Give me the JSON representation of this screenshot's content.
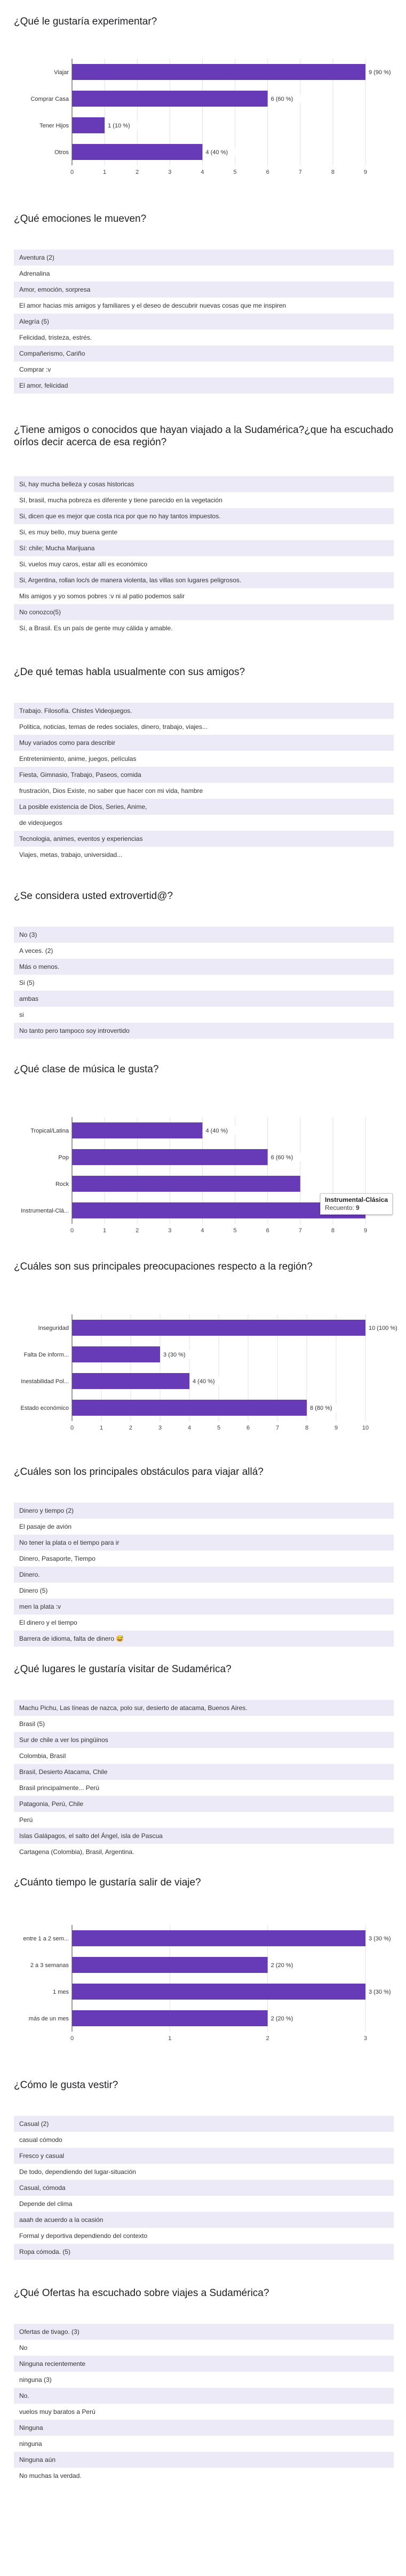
{
  "colors": {
    "bar": "#673ab7",
    "row_alt": "#eceaf6",
    "grid": "#e0e0e0",
    "text": "#212121"
  },
  "q1": {
    "title": "¿Qué le gustaría experimentar?",
    "chart_data": {
      "type": "bar",
      "orientation": "horizontal",
      "categories": [
        "Viajar",
        "Comprar Casa",
        "Tener Hijos",
        "Otros"
      ],
      "values": [
        9,
        6,
        1,
        4
      ],
      "value_labels": [
        "9 (90 %)",
        "6 (60 %)",
        "1 (10 %)",
        "4 (40 %)"
      ],
      "xlim": [
        0,
        9
      ],
      "xticks": [
        "0",
        "1",
        "2",
        "3",
        "4",
        "5",
        "6",
        "7",
        "8",
        "9"
      ]
    }
  },
  "q2": {
    "title": "¿Qué emociones le mueven?",
    "items": [
      "Aventura (2)",
      "Adrenalina",
      "Amor, emoción, sorpresa",
      "El amor hacias mis amigos y familiares y el deseo de descubrir nuevas cosas que me inspiren",
      "Alegría (5)",
      "Felicidad, tristeza, estrés.",
      "Compañerismo, Cariño",
      "Comprar :v",
      "El amor, felicidad"
    ]
  },
  "q3": {
    "title": "¿Tiene amigos o conocidos que hayan viajado a la Sudamérica?¿que ha escuchado oírlos decir acerca de esa región?",
    "items": [
      "Si, hay mucha belleza y cosas historicas",
      "SI, brasil, mucha pobreza es diferente y tiene parecido en la vegetación",
      "Si, dicen que es mejor que costa rica por que no hay tantos impuestos.",
      "Si, es muy bello, muy buena gente",
      "Sí: chile; Mucha Marijuana",
      "Si, vuelos muy caros, estar allí es económico",
      "Si, Argentina, rollan loc/s de manera violenta, las villas son lugares peligrosos.",
      "Mis amigos y yo somos pobres :v ni al patio podemos salir",
      "No conozco(5)",
      "Sí, a Brasil. Es un país de gente muy cálida y amable."
    ]
  },
  "q4": {
    "title": "¿De qué temas habla usualmente con sus amigos?",
    "items": [
      "Trabajo. Filosofía. Chistes Videojuegos.",
      "Politica, noticias, temas de redes sociales, dinero, trabajo, viajes...",
      "Muy variados como para describir",
      "Entretenimiento, anime, juegos, películas",
      "Fiesta, Gimnasio, Trabajo, Paseos, comida",
      "frustración, Dios Existe, no saber que hacer con mi vida, hambre",
      "La posible existencia de Dios, Series, Anime,",
      "de videojuegos",
      "Tecnologia, animes, eventos y experiencias",
      "Viajes, metas, trabajo, universidad..."
    ]
  },
  "q5": {
    "title": "¿Se considera usted extrovertid@?",
    "items": [
      "No (3)",
      "A veces. (2)",
      "Más o menos.",
      "Si (5)",
      "ambas",
      "si",
      "No tanto pero tampoco soy introvertido"
    ]
  },
  "q6": {
    "title": "¿Qué clase de música le gusta?",
    "chart_data": {
      "type": "bar",
      "orientation": "horizontal",
      "categories": [
        "Tropical/Latina",
        "Pop",
        "Rock",
        "Instrumental-Clá..."
      ],
      "values": [
        4,
        6,
        7,
        9
      ],
      "value_labels": [
        "4 (40 %)",
        "6 (60 %)",
        "",
        "9 (90 %)"
      ],
      "xlim": [
        0,
        9
      ],
      "xticks": [
        "0",
        "1",
        "2",
        "3",
        "4",
        "5",
        "6",
        "7",
        "8",
        "9"
      ]
    },
    "tooltip": {
      "title": "Instrumental-Clásica",
      "label": "Recuento",
      "value": "9"
    }
  },
  "q7": {
    "title": "¿Cuáles son sus principales preocupaciones respecto a la región?",
    "chart_data": {
      "type": "bar",
      "orientation": "horizontal",
      "categories": [
        "Inseguridad",
        "Falta De inform...",
        "Inestabilidad Pol...",
        "Estado económico"
      ],
      "values": [
        10,
        3,
        4,
        8
      ],
      "value_labels": [
        "10 (100 %)",
        "3 (30 %)",
        "4 (40 %)",
        "8 (80 %)"
      ],
      "xlim": [
        0,
        10
      ],
      "xticks": [
        "0",
        "1",
        "2",
        "3",
        "4",
        "5",
        "6",
        "7",
        "8",
        "9",
        "10"
      ]
    }
  },
  "q8": {
    "title": "¿Cuáles son los principales obstáculos para viajar allá?",
    "items": [
      "Dinero y tiempo (2)",
      "El pasaje de avión",
      "No tener la plata o el tiempo para ir",
      "Dinero, Pasaporte, Tiempo",
      "Dinero.",
      "Dinero (5)",
      "men la plata :v",
      "El dinero y el tiempo",
      "Barrera de idioma, falta de dinero 😅"
    ]
  },
  "q9": {
    "title": "¿Qué lugares le gustaría visitar de Sudamérica?",
    "items": [
      "Machu Pichu, Las líneas de nazca, polo sur, desierto de atacama, Buenos Aires.",
      "Brasil (5)",
      "Sur de chile a ver los pingüinos",
      "Colombia, Brasil",
      "Brasil, Desierto Atacama, Chile",
      "Brasil principalmente... Perú",
      "Patagonia, Perú, Chile",
      "Perú",
      "Islas Galápagos, el salto del Ángel, isla de Pascua",
      "Cartagena (Colombia), Brasil, Argentina."
    ]
  },
  "q10": {
    "title": "¿Cuánto tiempo le gustaría salir de viaje?",
    "chart_data": {
      "type": "bar",
      "orientation": "horizontal",
      "categories": [
        "entre 1 a 2 sem...",
        "2 a 3 semanas",
        "1 mes",
        "más de un mes"
      ],
      "values": [
        3,
        2,
        3,
        2
      ],
      "value_labels": [
        "3 (30 %)",
        "2 (20 %)",
        "3 (30 %)",
        "2 (20 %)"
      ],
      "xlim": [
        0,
        3
      ],
      "xticks": [
        "0",
        "1",
        "2",
        "3"
      ]
    }
  },
  "q11": {
    "title": "¿Cómo le gusta vestir?",
    "items": [
      "Casual (2)",
      "casual cómodo",
      "Fresco y casual",
      "De todo, dependiendo del lugar-situación",
      "Casual, cómoda",
      "Depende del clima",
      "aaah de acuerdo a la ocasión",
      "Formal y deportiva dependiendo del contexto",
      "Ropa cómoda. (5)"
    ]
  },
  "q12": {
    "title": "¿Qué Ofertas ha escuchado sobre viajes a Sudamérica?",
    "items": [
      "Ofertas de tivago. (3)",
      "No",
      "Ninguna recientemente",
      "ninguna (3)",
      "No.",
      "vuelos muy baratos a Perú",
      "Ninguna",
      "ninguna",
      "Ninguna aún",
      "No muchas la verdad."
    ]
  }
}
